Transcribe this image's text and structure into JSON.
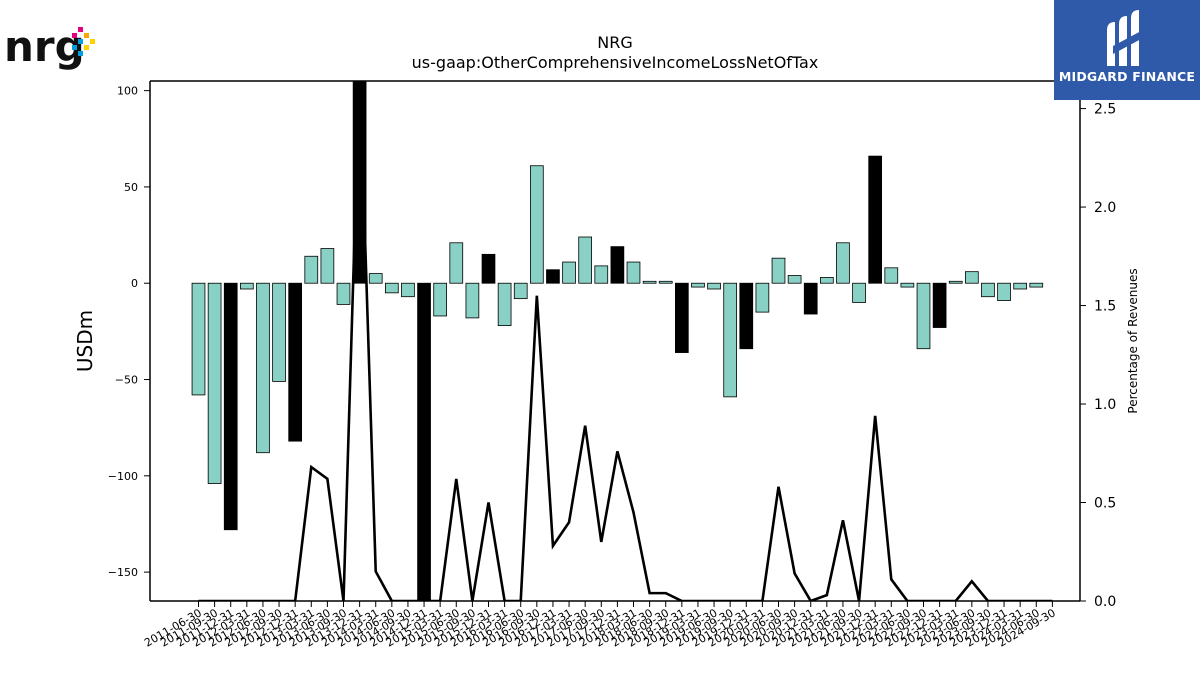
{
  "logos": {
    "company": "nrg",
    "brand": "MIDGARD FINANCE"
  },
  "chart_data": {
    "type": "bar",
    "title": "NRG",
    "subtitle": "us-gaap:OtherComprehensiveIncomeLossNetOfTax",
    "ylabel": "USDm",
    "y2label": "Percentage of Revenues",
    "ylim": [
      -165,
      105
    ],
    "y2lim": [
      0,
      2.64
    ],
    "yticks": [
      100,
      50,
      0,
      -50,
      -100,
      -150
    ],
    "y2ticks": [
      0.0,
      0.5,
      1.0,
      1.5,
      2.0,
      2.5
    ],
    "grid": false,
    "colors": {
      "bar": "#88d1c4",
      "bar_highlight": "#000000",
      "line": "#000000"
    },
    "categories": [
      "2011-06-30",
      "2011-09-30",
      "2011-12-31",
      "2012-03-31",
      "2012-06-30",
      "2012-09-30",
      "2012-12-31",
      "2013-03-31",
      "2013-06-30",
      "2013-09-30",
      "2013-12-31",
      "2014-03-31",
      "2014-06-30",
      "2014-09-30",
      "2014-12-31",
      "2015-03-31",
      "2015-06-30",
      "2015-09-30",
      "2015-12-31",
      "2016-03-31",
      "2016-06-30",
      "2016-09-30",
      "2016-12-31",
      "2017-03-31",
      "2017-06-30",
      "2017-09-30",
      "2017-12-31",
      "2018-03-31",
      "2018-06-30",
      "2018-09-30",
      "2018-12-31",
      "2019-03-31",
      "2019-06-30",
      "2019-09-30",
      "2019-12-31",
      "2020-03-31",
      "2020-06-30",
      "2020-09-30",
      "2020-12-31",
      "2021-03-31",
      "2021-06-30",
      "2021-09-30",
      "2021-12-31",
      "2022-03-31",
      "2022-06-30",
      "2022-09-30",
      "2022-12-31",
      "2023-03-31",
      "2023-06-30",
      "2023-09-30",
      "2023-12-31",
      "2024-03-31",
      "2024-06-30",
      "2024-09-30"
    ],
    "values": [
      -58,
      -104,
      -128,
      -3,
      -88,
      -51,
      -82,
      14,
      18,
      -11,
      108,
      5,
      -5,
      -7,
      -165,
      -17,
      21,
      -18,
      15,
      -22,
      -8,
      61,
      7,
      11,
      24,
      9,
      19,
      11,
      1,
      1,
      -36,
      -2,
      -3,
      -59,
      -34,
      -15,
      13,
      4,
      -16,
      3,
      21,
      -10,
      66,
      8,
      -2,
      -34,
      -23,
      1,
      6,
      -7,
      -9,
      -3,
      -2,
      null
    ],
    "highlight": [
      false,
      false,
      true,
      false,
      false,
      false,
      true,
      false,
      false,
      false,
      true,
      false,
      false,
      false,
      true,
      false,
      false,
      false,
      true,
      false,
      false,
      false,
      true,
      false,
      false,
      false,
      true,
      false,
      false,
      false,
      true,
      false,
      false,
      false,
      true,
      false,
      false,
      false,
      true,
      false,
      false,
      false,
      true,
      false,
      false,
      false,
      true,
      false,
      false,
      false,
      false,
      false,
      false,
      false
    ],
    "line_values": [
      0,
      0,
      0,
      0,
      0,
      0,
      0,
      0.68,
      0.62,
      0,
      2.7,
      0.15,
      0,
      0,
      0,
      0,
      0.62,
      0,
      0.5,
      0,
      0,
      1.55,
      0.28,
      0.4,
      0.89,
      0.3,
      0.76,
      0.45,
      0.04,
      0.04,
      0,
      0,
      0,
      0,
      0,
      0,
      0.58,
      0.14,
      0,
      0.03,
      0.41,
      0,
      0.94,
      0.11,
      0,
      0,
      0,
      0,
      0.1,
      0,
      0,
      0,
      0,
      0
    ]
  }
}
